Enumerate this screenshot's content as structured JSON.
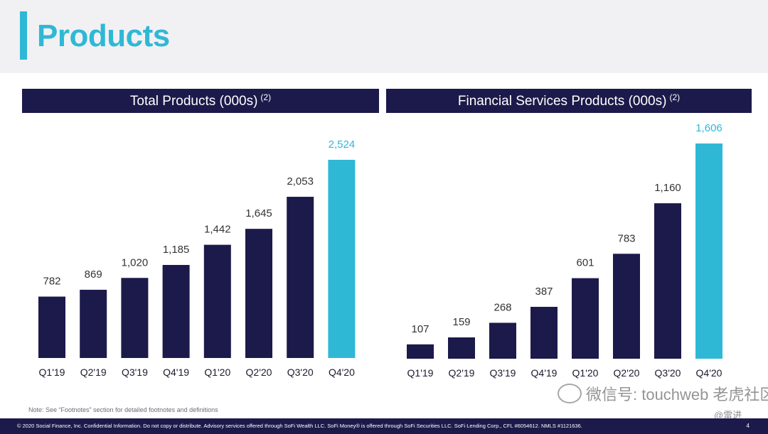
{
  "page": {
    "title": "Products",
    "footnote": "Note: See “Footnotes” section for detailed footnotes and definitions",
    "copyright": "© 2020 Social Finance, Inc. Confidential Information. Do not copy or distribute. Advisory services offered through SoFi Wealth LLC. SoFi Money® is offered through SoFi Securities LLC. SoFi Lending Corp., CFL #6054612. NMLS #1121636.",
    "page_number": "4",
    "watermark": "微信号: touchweb",
    "watermark_brand": "老虎社区",
    "watermark_author": "@雷进"
  },
  "colors": {
    "bar": "#1c1a4a",
    "highlight": "#2fb8d6",
    "label": "#333333",
    "highlight_label": "#2fb8d6"
  },
  "chart_data": [
    {
      "type": "bar",
      "title": "Total Products (000s)",
      "title_sup": "(2)",
      "categories": [
        "Q1'19",
        "Q2'19",
        "Q3'19",
        "Q4'19",
        "Q1'20",
        "Q2'20",
        "Q3'20",
        "Q4'20"
      ],
      "values": [
        782,
        869,
        1020,
        1185,
        1442,
        1645,
        2053,
        2524
      ],
      "value_labels": [
        "782",
        "869",
        "1,020",
        "1,185",
        "1,442",
        "1,645",
        "2,053",
        "2,524"
      ],
      "highlight_index": 7,
      "ylim": [
        0,
        2524
      ],
      "xlabel": "",
      "ylabel": ""
    },
    {
      "type": "bar",
      "title": "Financial Services Products (000s)",
      "title_sup": "(2)",
      "categories": [
        "Q1'19",
        "Q2'19",
        "Q3'19",
        "Q4'19",
        "Q1'20",
        "Q2'20",
        "Q3'20",
        "Q4'20"
      ],
      "values": [
        107,
        159,
        268,
        387,
        601,
        783,
        1160,
        1606
      ],
      "value_labels": [
        "107",
        "159",
        "268",
        "387",
        "601",
        "783",
        "1,160",
        "1,606"
      ],
      "highlight_index": 7,
      "ylim": [
        0,
        1606
      ],
      "xlabel": "",
      "ylabel": ""
    }
  ]
}
